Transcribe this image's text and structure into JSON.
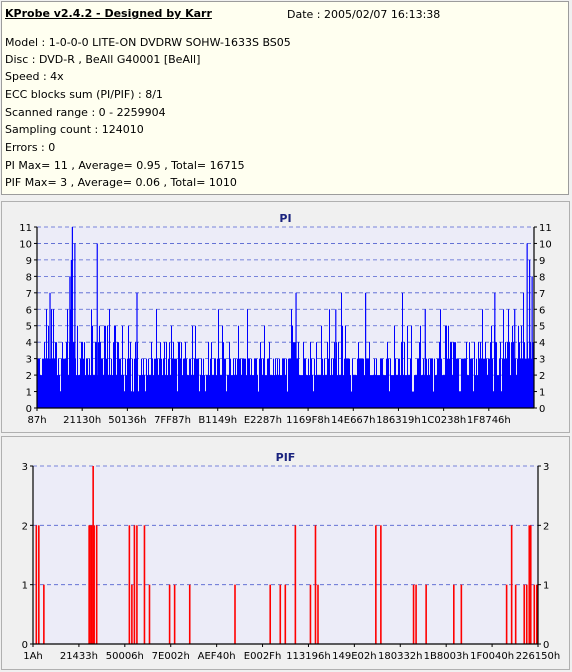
{
  "header": {
    "title": "KProbe v2.4.2 - Designed by Karr",
    "date": "Date : 2005/02/07 16:13:38",
    "lines": [
      "Model : 1-0-0-0 LITE-ON DVDRW SOHW-1633S BS05",
      "Disc : DVD-R , BeAll G40001 [BeAll]",
      "Speed : 4x",
      "ECC blocks sum (PI/PIF) : 8/1",
      "Scanned range : 0 - 2259904",
      "Sampling count : 124010",
      "Errors : 0",
      "PI Max= 11 , Average= 0.95 , Total= 16715",
      "PIF Max= 3 , Average= 0.06 , Total= 1010"
    ]
  },
  "chart_data": [
    {
      "type": "bar",
      "title": "PI",
      "ylim": [
        0,
        11
      ],
      "yticks": [
        0,
        1,
        2,
        3,
        4,
        5,
        6,
        7,
        8,
        9,
        10,
        11
      ],
      "xticks": [
        "87h",
        "21130h",
        "50136h",
        "7FF87h",
        "B1149h",
        "E2287h",
        "1169F8h",
        "14E667h",
        "186319h",
        "1C0238h",
        "1F8746h"
      ],
      "color": "#0000ff",
      "grid": true,
      "max": 11,
      "average": 0.95,
      "total": 16715
    },
    {
      "type": "bar",
      "title": "PIF",
      "ylim": [
        0,
        3
      ],
      "yticks": [
        0,
        1,
        2,
        3
      ],
      "xticks": [
        "1Ah",
        "21433h",
        "50006h",
        "7E002h",
        "AEF40h",
        "E002Fh",
        "113196h",
        "149E02h",
        "180332h",
        "1B8003h",
        "1F0040h",
        "226150h"
      ],
      "color": "#ff0000",
      "grid": true,
      "max": 3,
      "average": 0.06,
      "total": 1010,
      "spikes": [
        [
          0.005,
          2
        ],
        [
          0.01,
          2
        ],
        [
          0.02,
          1
        ],
        [
          0.11,
          2
        ],
        [
          0.112,
          2
        ],
        [
          0.115,
          2
        ],
        [
          0.118,
          3
        ],
        [
          0.12,
          2
        ],
        [
          0.125,
          2
        ],
        [
          0.19,
          2
        ],
        [
          0.195,
          1
        ],
        [
          0.2,
          2
        ],
        [
          0.205,
          2
        ],
        [
          0.22,
          2
        ],
        [
          0.23,
          1
        ],
        [
          0.27,
          1
        ],
        [
          0.28,
          1
        ],
        [
          0.31,
          1
        ],
        [
          0.4,
          1
        ],
        [
          0.47,
          1
        ],
        [
          0.49,
          1
        ],
        [
          0.5,
          1
        ],
        [
          0.52,
          2
        ],
        [
          0.55,
          1
        ],
        [
          0.565,
          1
        ],
        [
          0.56,
          2
        ],
        [
          0.68,
          2
        ],
        [
          0.69,
          2
        ],
        [
          0.755,
          1
        ],
        [
          0.76,
          1
        ],
        [
          0.78,
          1
        ],
        [
          0.835,
          1
        ],
        [
          0.85,
          1
        ],
        [
          0.94,
          1
        ],
        [
          0.95,
          2
        ],
        [
          0.958,
          1
        ],
        [
          0.975,
          1
        ],
        [
          0.98,
          1
        ],
        [
          0.985,
          2
        ],
        [
          0.988,
          2
        ],
        [
          0.995,
          1
        ],
        [
          1.0,
          1
        ]
      ]
    }
  ]
}
